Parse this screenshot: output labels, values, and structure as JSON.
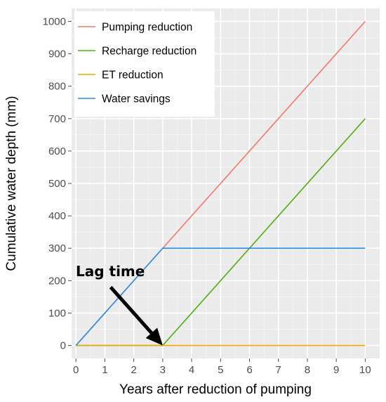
{
  "chart_data": {
    "type": "line",
    "xlabel": "Years after reduction of pumping",
    "ylabel": "Cumulative water depth (mm)",
    "xlim": [
      -0.15,
      10.5
    ],
    "ylim": [
      -40,
      1040
    ],
    "x_ticks": [
      0,
      1,
      2,
      3,
      4,
      5,
      6,
      7,
      8,
      9,
      10
    ],
    "y_ticks": [
      0,
      100,
      200,
      300,
      400,
      500,
      600,
      700,
      800,
      900,
      1000
    ],
    "grid": true,
    "legend_position": "top-left",
    "series": [
      {
        "name": "Pumping reduction",
        "color": "#f8766d",
        "x": [
          0,
          3,
          10
        ],
        "y": [
          0,
          300,
          1000
        ]
      },
      {
        "name": "Recharge reduction",
        "color": "#4daf0a",
        "x": [
          0,
          3,
          10
        ],
        "y": [
          0,
          0,
          700
        ]
      },
      {
        "name": "ET reduction",
        "color": "#f5a800",
        "x": [
          0,
          10
        ],
        "y": [
          0,
          0
        ]
      },
      {
        "name": "Water savings",
        "color": "#2d8fe3",
        "x": [
          0,
          3,
          10
        ],
        "y": [
          0,
          300,
          300
        ]
      }
    ],
    "annotation": {
      "text": "Lag time",
      "arrow_from": [
        1.2,
        180
      ],
      "arrow_to": [
        3,
        0
      ]
    }
  }
}
